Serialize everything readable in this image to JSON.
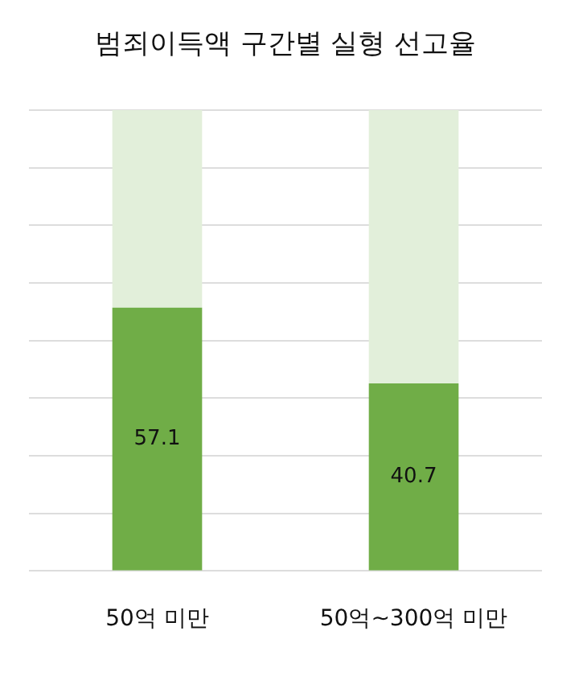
{
  "chart_data": {
    "type": "bar",
    "title": "범죄이득액 구간별 실형 선고율",
    "categories": [
      "50억 미만",
      "50억~300억 미만"
    ],
    "stacked": true,
    "ylim": [
      0,
      100
    ],
    "tick_labels": "x",
    "grid": "y",
    "legend": false,
    "series": [
      {
        "color": "#70ad47",
        "values": [
          57.1,
          40.7
        ],
        "value_labels": [
          "57.1",
          "40.7"
        ]
      },
      {
        "color": "#e2efda",
        "values": [
          42.9,
          59.3
        ]
      }
    ]
  }
}
